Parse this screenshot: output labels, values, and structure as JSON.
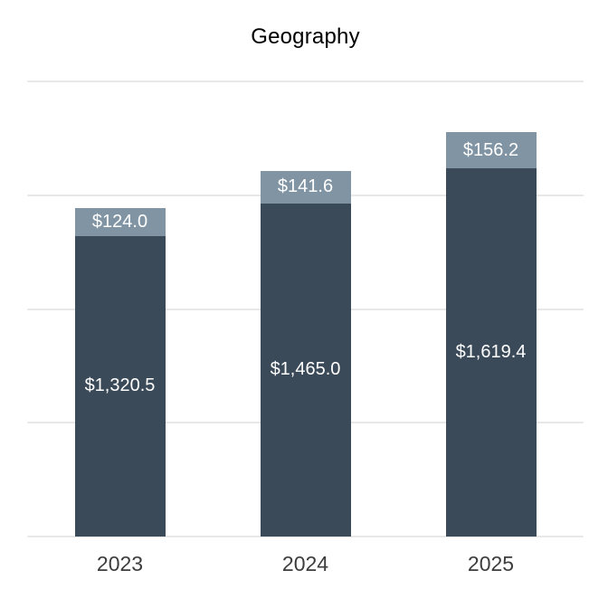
{
  "chart_data": {
    "type": "bar",
    "stacked": true,
    "title": "Geography",
    "categories": [
      "2023",
      "2024",
      "2025"
    ],
    "series": [
      {
        "values": [
          1320.5,
          1465.0,
          1619.4
        ],
        "labels": [
          "$1,320.5",
          "$1,465.0",
          "$1,619.4"
        ],
        "color": "#3b4a59"
      },
      {
        "values": [
          124.0,
          141.6,
          156.2
        ],
        "labels": [
          "$124.0",
          "$141.6",
          "$156.2"
        ],
        "color": "#8094a4"
      }
    ],
    "xlabel": "",
    "ylabel": "",
    "ylim": [
      0,
      2000
    ],
    "gridline_values": [
      0,
      500,
      1000,
      1500,
      2000
    ],
    "grid": true,
    "legend": false,
    "y_axis_tick_labels_visible": false
  },
  "colors": {
    "background": "#ffffff",
    "bar_dark": "#3b4a59",
    "bar_light": "#8094a4",
    "gridline": "#e8e8e8",
    "title_text": "#000000",
    "axis_text": "#3d3d3d",
    "value_text": "#ffffff"
  }
}
